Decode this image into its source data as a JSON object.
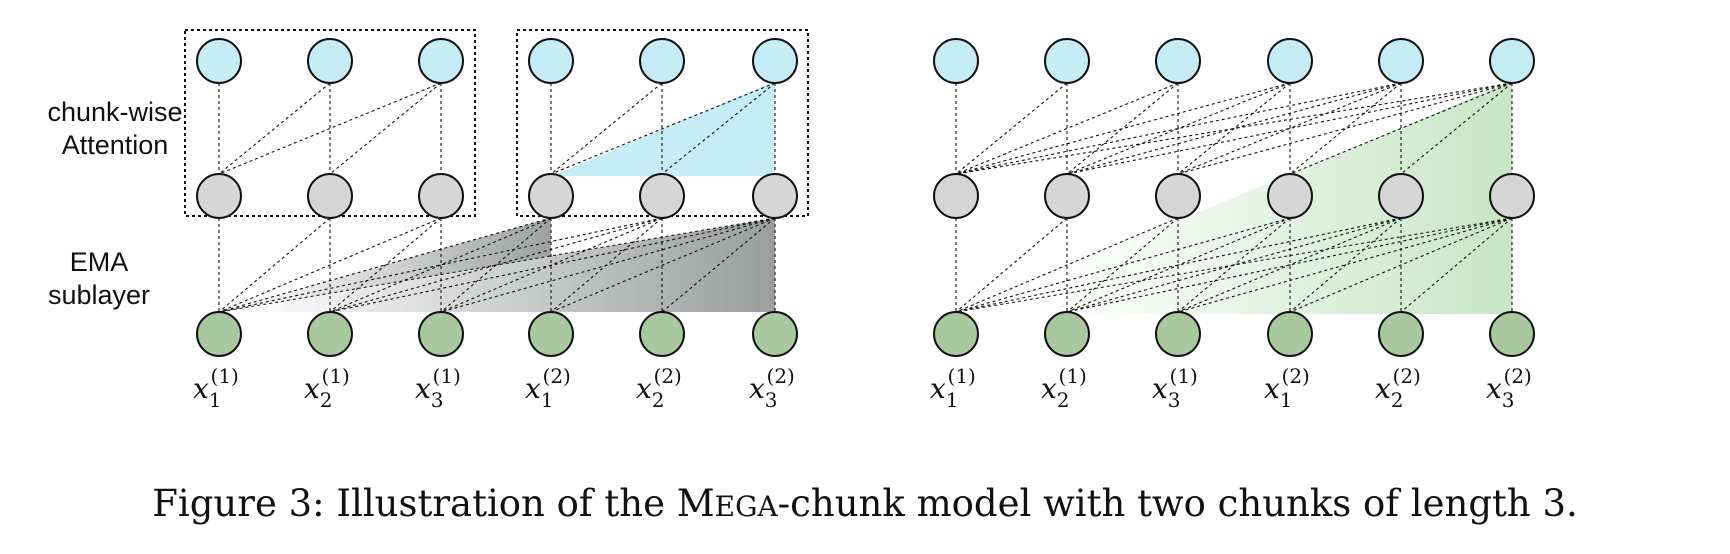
{
  "labels": {
    "attention_line1": "chunk-wise",
    "attention_line2": "Attention",
    "ema_line1": "EMA",
    "ema_line2": "sublayer"
  },
  "tokens": [
    {
      "base": "x",
      "sub": "1",
      "sup": "(1)"
    },
    {
      "base": "x",
      "sub": "2",
      "sup": "(1)"
    },
    {
      "base": "x",
      "sub": "3",
      "sup": "(1)"
    },
    {
      "base": "x",
      "sub": "1",
      "sup": "(2)"
    },
    {
      "base": "x",
      "sub": "2",
      "sup": "(2)"
    },
    {
      "base": "x",
      "sub": "3",
      "sup": "(2)"
    }
  ],
  "caption": {
    "prefix": "Figure 3: Illustration of the ",
    "model_initial": "M",
    "model_rest": "EGA",
    "suffix": "-chunk model with two chunks of length 3."
  },
  "colors": {
    "top_node": "#c6ecf6",
    "mid_node": "#d6d6d6",
    "input_node": "#a8c8a0",
    "attention_fill": "#c6ecf6",
    "ema_gray_dark": "#8c8f8f",
    "ema_green_dark": "#b3deb0",
    "stroke": "#111111"
  }
}
